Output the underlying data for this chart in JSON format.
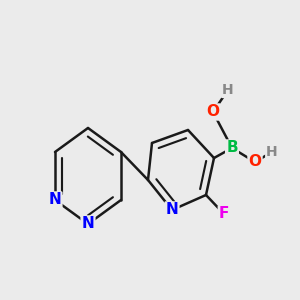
{
  "background_color": "#ebebeb",
  "bond_color": "#1a1a1a",
  "bond_width": 1.8,
  "atom_colors": {
    "N": "#0000ff",
    "B": "#00bb44",
    "O": "#ff2200",
    "F": "#ee00ee",
    "H": "#888888",
    "C": "#1a1a1a"
  },
  "font_size_heavy": 11,
  "font_size_H": 10
}
